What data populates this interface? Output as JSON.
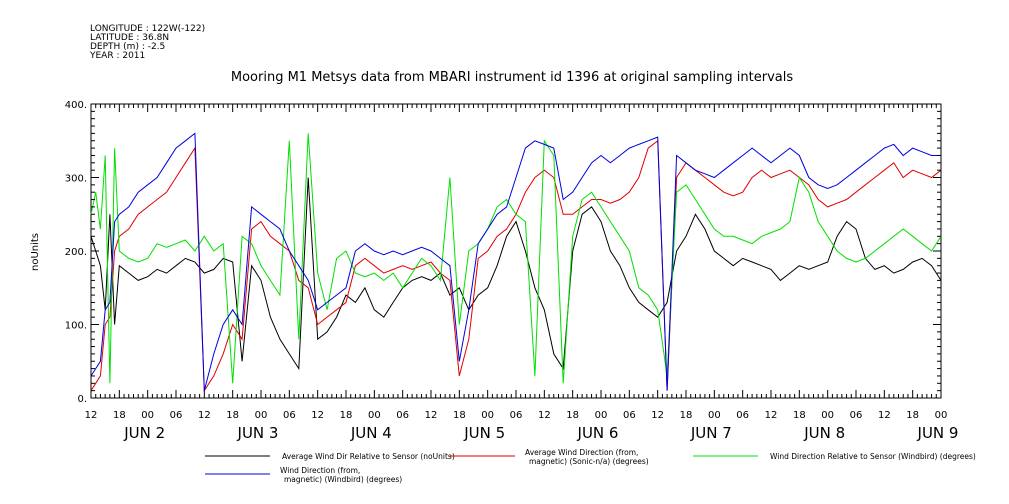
{
  "header": {
    "longitude": "LONGITUDE : 122W(-122)",
    "latitude": "LATITUDE : 36.8N",
    "depth": "DEPTH (m) : -2.5",
    "year": "YEAR : 2011"
  },
  "chart_data": {
    "type": "line",
    "title": "Mooring M1 Metsys data from MBARI instrument id 1396 at original sampling intervals",
    "ylabel": "noUnits",
    "ylim": [
      0,
      400
    ],
    "yticks": [
      0,
      100,
      200,
      300,
      400
    ],
    "ytick_labels": [
      "0.",
      "100.",
      "200.",
      "300.",
      "400."
    ],
    "x_unit": "hours since 2011-06-01 00:00",
    "xlim": [
      36,
      216
    ],
    "xtick_hours": [
      36,
      42,
      48,
      54,
      60,
      66,
      72,
      78,
      84,
      90,
      96,
      102,
      108,
      114,
      120,
      126,
      132,
      138,
      144,
      150,
      156,
      162,
      168,
      174,
      180,
      186,
      192,
      198,
      204,
      210,
      216
    ],
    "xtick_labels": [
      "12",
      "18",
      "00",
      "06",
      "12",
      "18",
      "00",
      "06",
      "12",
      "18",
      "00",
      "06",
      "12",
      "18",
      "00",
      "06",
      "12",
      "18",
      "00",
      "06",
      "12",
      "18",
      "00",
      "06",
      "12",
      "18",
      "00",
      "06",
      "12",
      "18",
      "00"
    ],
    "day_labels": [
      {
        "hour": 48,
        "text": "JUN  2"
      },
      {
        "hour": 72,
        "text": "JUN  3"
      },
      {
        "hour": 96,
        "text": "JUN  4"
      },
      {
        "hour": 120,
        "text": "JUN  5"
      },
      {
        "hour": 144,
        "text": "JUN  6"
      },
      {
        "hour": 168,
        "text": "JUN  7"
      },
      {
        "hour": 192,
        "text": "JUN  8"
      },
      {
        "hour": 216,
        "text": "JUN  9"
      }
    ],
    "series": [
      {
        "name": "Average Wind Dir Relative to Sensor (noUnits)",
        "color": "#000000",
        "x": [
          36,
          37,
          38,
          39,
          40,
          41,
          42,
          44,
          46,
          48,
          50,
          52,
          54,
          56,
          58,
          60,
          62,
          64,
          66,
          68,
          70,
          72,
          74,
          76,
          78,
          80,
          82,
          84,
          86,
          88,
          90,
          92,
          94,
          96,
          98,
          100,
          102,
          104,
          106,
          108,
          110,
          112,
          114,
          116,
          118,
          120,
          122,
          124,
          126,
          128,
          130,
          132,
          134,
          136,
          138,
          140,
          142,
          144,
          146,
          148,
          150,
          152,
          154,
          156,
          158,
          160,
          162,
          164,
          166,
          168,
          170,
          172,
          174,
          176,
          178,
          180,
          182,
          184,
          186,
          188,
          190,
          192,
          194,
          196,
          198,
          200,
          202,
          204,
          206,
          208,
          210,
          212,
          214,
          216
        ],
        "y": [
          220,
          200,
          180,
          120,
          250,
          100,
          180,
          170,
          160,
          165,
          175,
          170,
          180,
          190,
          185,
          170,
          175,
          190,
          185,
          50,
          180,
          160,
          110,
          80,
          60,
          40,
          300,
          80,
          90,
          110,
          140,
          130,
          150,
          120,
          110,
          130,
          150,
          160,
          165,
          160,
          170,
          140,
          150,
          120,
          140,
          150,
          180,
          220,
          240,
          200,
          150,
          120,
          60,
          40,
          200,
          250,
          260,
          240,
          200,
          180,
          150,
          130,
          120,
          110,
          130,
          200,
          220,
          250,
          230,
          200,
          190,
          180,
          190,
          185,
          180,
          175,
          160,
          170,
          180,
          175,
          180,
          185,
          220,
          240,
          230,
          190,
          175,
          180,
          170,
          175,
          185,
          190,
          180,
          160
        ]
      },
      {
        "name": "Average Wind Direction (from, magnetic) (Sonic-n/a) (degrees)",
        "color": "#e00000",
        "x": [
          36,
          37,
          38,
          39,
          40,
          41,
          42,
          44,
          46,
          48,
          50,
          52,
          54,
          56,
          58,
          60,
          62,
          64,
          66,
          68,
          70,
          72,
          74,
          76,
          78,
          80,
          82,
          84,
          86,
          88,
          90,
          92,
          94,
          96,
          98,
          100,
          102,
          104,
          106,
          108,
          110,
          112,
          114,
          116,
          118,
          120,
          122,
          124,
          126,
          128,
          130,
          132,
          134,
          136,
          138,
          140,
          142,
          144,
          146,
          148,
          150,
          152,
          154,
          156,
          158,
          160,
          162,
          164,
          166,
          168,
          170,
          172,
          174,
          176,
          178,
          180,
          182,
          184,
          186,
          188,
          190,
          192,
          194,
          196,
          198,
          200,
          202,
          204,
          206,
          208,
          210,
          212,
          214,
          216
        ],
        "y": [
          10,
          20,
          30,
          100,
          110,
          200,
          220,
          230,
          250,
          260,
          270,
          280,
          300,
          320,
          340,
          10,
          30,
          60,
          100,
          80,
          230,
          240,
          220,
          210,
          200,
          160,
          150,
          100,
          110,
          120,
          130,
          180,
          190,
          180,
          170,
          175,
          180,
          175,
          180,
          185,
          170,
          160,
          30,
          80,
          190,
          200,
          220,
          230,
          250,
          280,
          300,
          310,
          300,
          250,
          250,
          260,
          270,
          270,
          265,
          270,
          280,
          300,
          340,
          350,
          10,
          300,
          320,
          310,
          300,
          290,
          280,
          275,
          280,
          300,
          310,
          300,
          305,
          310,
          300,
          290,
          270,
          260,
          265,
          270,
          280,
          290,
          300,
          310,
          320,
          300,
          310,
          305,
          300,
          310
        ]
      },
      {
        "name": "Wind Direction Relative to Sensor (Windbird) (degrees)",
        "color": "#00e000",
        "x": [
          36,
          37,
          38,
          39,
          40,
          41,
          42,
          44,
          46,
          48,
          50,
          52,
          54,
          56,
          58,
          60,
          62,
          64,
          66,
          68,
          70,
          72,
          74,
          76,
          78,
          80,
          82,
          84,
          86,
          88,
          90,
          92,
          94,
          96,
          98,
          100,
          102,
          104,
          106,
          108,
          110,
          112,
          114,
          116,
          118,
          120,
          122,
          124,
          126,
          128,
          130,
          132,
          134,
          136,
          138,
          140,
          142,
          144,
          146,
          148,
          150,
          152,
          154,
          156,
          158,
          160,
          162,
          164,
          166,
          168,
          170,
          172,
          174,
          176,
          178,
          180,
          182,
          184,
          186,
          188,
          190,
          192,
          194,
          196,
          198,
          200,
          202,
          204,
          206,
          208,
          210,
          212,
          214,
          216
        ],
        "y": [
          250,
          280,
          230,
          330,
          20,
          340,
          200,
          190,
          185,
          190,
          210,
          205,
          210,
          215,
          200,
          220,
          200,
          210,
          20,
          220,
          210,
          180,
          160,
          140,
          350,
          80,
          360,
          170,
          120,
          190,
          200,
          170,
          165,
          170,
          160,
          170,
          150,
          170,
          190,
          180,
          160,
          300,
          100,
          200,
          210,
          230,
          260,
          270,
          250,
          240,
          30,
          350,
          330,
          20,
          220,
          270,
          280,
          260,
          240,
          220,
          200,
          150,
          140,
          120,
          30,
          280,
          290,
          270,
          250,
          230,
          220,
          220,
          215,
          210,
          220,
          225,
          230,
          240,
          300,
          280,
          240,
          220,
          200,
          190,
          185,
          190,
          200,
          210,
          220,
          230,
          220,
          210,
          200,
          220
        ]
      },
      {
        "name": "Wind Direction (from, magnetic) (Windbird) (degrees)",
        "color": "#0000e0",
        "x": [
          36,
          37,
          38,
          39,
          40,
          41,
          42,
          44,
          46,
          48,
          50,
          52,
          54,
          56,
          58,
          60,
          62,
          64,
          66,
          68,
          70,
          72,
          74,
          76,
          78,
          80,
          82,
          84,
          86,
          88,
          90,
          92,
          94,
          96,
          98,
          100,
          102,
          104,
          106,
          108,
          110,
          112,
          114,
          116,
          118,
          120,
          122,
          124,
          126,
          128,
          130,
          132,
          134,
          136,
          138,
          140,
          142,
          144,
          146,
          148,
          150,
          152,
          154,
          156,
          158,
          160,
          162,
          164,
          166,
          168,
          170,
          172,
          174,
          176,
          178,
          180,
          182,
          184,
          186,
          188,
          190,
          192,
          194,
          196,
          198,
          200,
          202,
          204,
          206,
          208,
          210,
          212,
          214,
          216
        ],
        "y": [
          30,
          40,
          50,
          120,
          130,
          240,
          250,
          260,
          280,
          290,
          300,
          320,
          340,
          350,
          360,
          10,
          60,
          100,
          120,
          100,
          260,
          250,
          240,
          230,
          200,
          180,
          160,
          120,
          130,
          140,
          150,
          200,
          210,
          200,
          195,
          200,
          195,
          200,
          205,
          200,
          190,
          180,
          50,
          120,
          210,
          230,
          250,
          260,
          300,
          340,
          350,
          345,
          340,
          270,
          280,
          300,
          320,
          330,
          320,
          330,
          340,
          345,
          350,
          355,
          10,
          330,
          320,
          310,
          305,
          300,
          310,
          320,
          330,
          340,
          330,
          320,
          330,
          340,
          330,
          300,
          290,
          285,
          290,
          300,
          310,
          320,
          330,
          340,
          345,
          330,
          340,
          335,
          330,
          330
        ]
      }
    ],
    "legend": {
      "placement": "bottom",
      "entries": [
        {
          "label_lines": [
            "Average Wind Dir Relative to Sensor (noUnits)"
          ],
          "color": "#000000"
        },
        {
          "label_lines": [
            "Average Wind Direction (from,",
            "magnetic) (Sonic-n/a) (degrees)"
          ],
          "color": "#e00000"
        },
        {
          "label_lines": [
            "Wind Direction Relative to Sensor (Windbird) (degrees)"
          ],
          "color": "#00e000"
        },
        {
          "label_lines": [
            "Wind Direction (from,",
            "magnetic) (Windbird) (degrees)"
          ],
          "color": "#0000e0"
        }
      ]
    },
    "grid": false
  }
}
